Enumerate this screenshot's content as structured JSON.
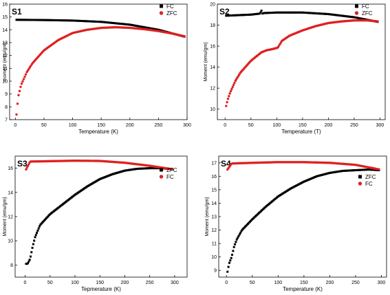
{
  "chart_data": [
    {
      "type": "scatter",
      "panel": "S1",
      "xlabel": "Temperature (K)",
      "ylabel": "moment (emu/gm)",
      "xlim": [
        -10,
        300
      ],
      "ylim": [
        7,
        16
      ],
      "xticks": [
        0,
        50,
        100,
        150,
        200,
        250,
        300
      ],
      "yticks": [
        7,
        8,
        9,
        10,
        11,
        12,
        13,
        14,
        15,
        16
      ],
      "legend_position": "top-right",
      "series": [
        {
          "name": "FC",
          "color": "#000000",
          "marker": "square",
          "x": [
            2,
            50,
            100,
            150,
            200,
            250,
            297
          ],
          "y": [
            14.78,
            14.76,
            14.72,
            14.62,
            14.4,
            14.0,
            13.45
          ]
        },
        {
          "name": "ZFC",
          "color": "#e02020",
          "marker": "circle",
          "x": [
            2,
            5,
            10,
            20,
            30,
            50,
            75,
            100,
            125,
            150,
            175,
            200,
            225,
            250,
            275,
            297
          ],
          "y": [
            7.4,
            8.8,
            9.7,
            10.7,
            11.4,
            12.4,
            13.2,
            13.75,
            14.0,
            14.15,
            14.2,
            14.15,
            14.05,
            13.9,
            13.7,
            13.48
          ]
        }
      ]
    },
    {
      "type": "scatter",
      "panel": "S2",
      "xlabel": "Temperature (T)",
      "ylabel": "Moment (emu/gm)",
      "xlim": [
        -15,
        310
      ],
      "ylim": [
        9,
        20
      ],
      "xticks": [
        0,
        50,
        100,
        150,
        200,
        250,
        300
      ],
      "yticks": [
        10,
        12,
        14,
        16,
        18,
        20
      ],
      "legend_position": "top-right",
      "series": [
        {
          "name": "FC",
          "color": "#000000",
          "marker": "square",
          "x": [
            2,
            50,
            68,
            70,
            72,
            75,
            100,
            150,
            200,
            250,
            297
          ],
          "y": [
            18.9,
            19.0,
            19.1,
            19.45,
            19.1,
            19.15,
            19.2,
            19.2,
            19.05,
            18.75,
            18.3
          ]
        },
        {
          "name": "ZFC",
          "color": "#e02020",
          "marker": "circle",
          "x": [
            2,
            5,
            10,
            20,
            30,
            50,
            70,
            80,
            90,
            98,
            102,
            110,
            125,
            150,
            175,
            200,
            225,
            250,
            275,
            297
          ],
          "y": [
            10.3,
            10.9,
            11.6,
            12.7,
            13.5,
            14.6,
            15.4,
            15.6,
            15.7,
            15.8,
            15.85,
            16.5,
            17.0,
            17.5,
            17.9,
            18.2,
            18.35,
            18.45,
            18.45,
            18.35
          ]
        }
      ]
    },
    {
      "type": "scatter",
      "panel": "S3",
      "xlabel": "Tepmerature (K)",
      "ylabel": "Moment (emu/gm)",
      "xlim": [
        -20,
        325
      ],
      "ylim": [
        7,
        17
      ],
      "xticks": [
        0,
        50,
        100,
        150,
        200,
        250,
        300
      ],
      "yticks": [
        8,
        10,
        12,
        14,
        16
      ],
      "legend_position": "top-right",
      "series": [
        {
          "name": "ZFC",
          "color": "#000000",
          "marker": "square",
          "x": [
            2,
            5,
            10,
            15,
            20,
            30,
            50,
            75,
            100,
            125,
            150,
            175,
            200,
            225,
            250,
            275,
            297
          ],
          "y": [
            8.1,
            8.1,
            8.5,
            9.5,
            10.3,
            11.3,
            12.2,
            13.0,
            13.8,
            14.5,
            15.1,
            15.5,
            15.8,
            15.95,
            16.0,
            16.0,
            15.9
          ]
        },
        {
          "name": "FC",
          "color": "#e02020",
          "marker": "circle",
          "x": [
            2,
            10,
            50,
            100,
            150,
            200,
            250,
            297
          ],
          "y": [
            15.9,
            16.55,
            16.58,
            16.62,
            16.6,
            16.45,
            16.2,
            15.9
          ]
        }
      ]
    },
    {
      "type": "scatter",
      "panel": "S4",
      "xlabel": "Temperature (K)",
      "ylabel": "Moment (emu/gm)",
      "xlim": [
        -15,
        310
      ],
      "ylim": [
        8.5,
        17.5
      ],
      "xticks": [
        0,
        50,
        100,
        150,
        200,
        250,
        300
      ],
      "yticks": [
        9,
        10,
        11,
        12,
        13,
        14,
        15,
        16,
        17
      ],
      "legend_position": "right",
      "series": [
        {
          "name": "ZFC",
          "color": "#000000",
          "marker": "square",
          "x": [
            2,
            5,
            10,
            15,
            20,
            30,
            50,
            75,
            100,
            125,
            150,
            175,
            200,
            225,
            250,
            275,
            297
          ],
          "y": [
            8.9,
            9.5,
            10.0,
            10.8,
            11.3,
            12.0,
            12.8,
            13.7,
            14.5,
            15.1,
            15.6,
            16.0,
            16.25,
            16.4,
            16.45,
            16.5,
            16.45
          ]
        },
        {
          "name": "FC",
          "color": "#e02020",
          "marker": "circle",
          "x": [
            2,
            10,
            50,
            100,
            150,
            200,
            250,
            297
          ],
          "y": [
            16.5,
            16.95,
            17.0,
            17.05,
            17.05,
            17.0,
            16.85,
            16.5
          ]
        }
      ]
    }
  ]
}
